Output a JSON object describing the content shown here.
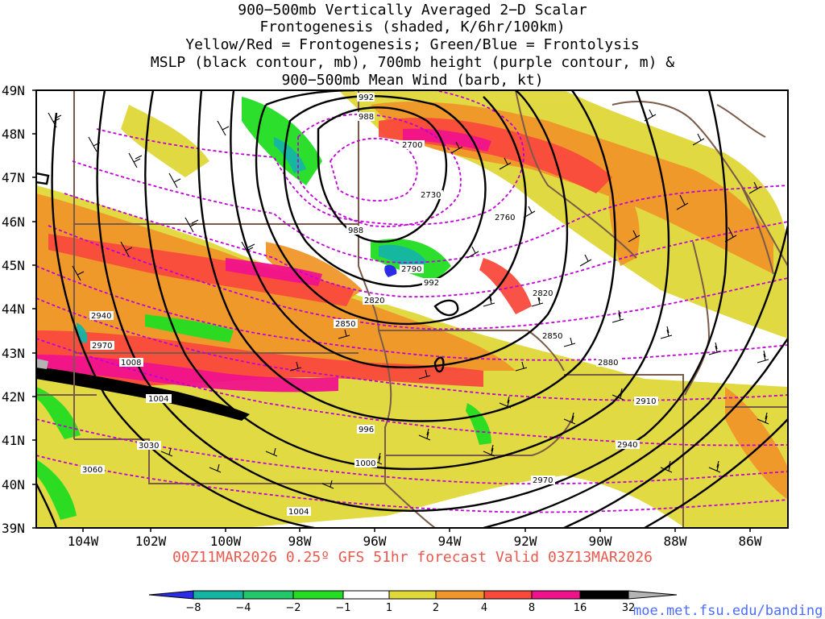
{
  "header": {
    "line1": "900−500mb Vertically Averaged 2−D Scalar",
    "line2": "Frontogenesis (shaded, K/6hr/100km)",
    "line3": "Yellow/Red = Frontogenesis;  Green/Blue = Frontolysis",
    "line4": "MSLP (black contour, mb), 700mb height (purple contour, m) &",
    "line5": "900−500mb Mean Wind (barb, kt)"
  },
  "axes": {
    "lat_labels": [
      "49N",
      "48N",
      "47N",
      "46N",
      "45N",
      "44N",
      "43N",
      "42N",
      "41N",
      "40N",
      "39N"
    ],
    "lon_labels": [
      "104W",
      "102W",
      "100W",
      "98W",
      "96W",
      "94W",
      "92W",
      "90W",
      "88W",
      "86W"
    ],
    "lat_range": [
      39,
      49
    ],
    "lon_range": [
      -105.2,
      -85.2
    ]
  },
  "contours": {
    "mslp_labels": [
      "992",
      "988",
      "988",
      "992",
      "996",
      "1000",
      "1004",
      "1004",
      "1008"
    ],
    "height_labels": [
      "2700",
      "2730",
      "2760",
      "2790",
      "2820",
      "2820",
      "2850",
      "2850",
      "2880",
      "2910",
      "2940",
      "2940",
      "2970",
      "2970",
      "3030",
      "3060"
    ]
  },
  "colorbar": {
    "labels": [
      "−8",
      "−4",
      "−2",
      "−1",
      "1",
      "2",
      "4",
      "8",
      "16",
      "32"
    ],
    "colors": [
      "#2b2be8",
      "#14b4a4",
      "#20c86a",
      "#22dd22",
      "#ffffff",
      "#e0d838",
      "#f0962a",
      "#f84a3c",
      "#f0128c",
      "#000000",
      "#b4b4b4"
    ]
  },
  "colors": {
    "mslp": "#000000",
    "height": "#c000d8",
    "borders": "#7a5a48",
    "footer": "#e8594e",
    "credit": "#4a6cff"
  },
  "footer": {
    "valid_text": "00Z11MAR2026 0.25º GFS 51hr forecast Valid 03Z13MAR2026",
    "credit": "moe.met.fsu.edu/banding"
  }
}
